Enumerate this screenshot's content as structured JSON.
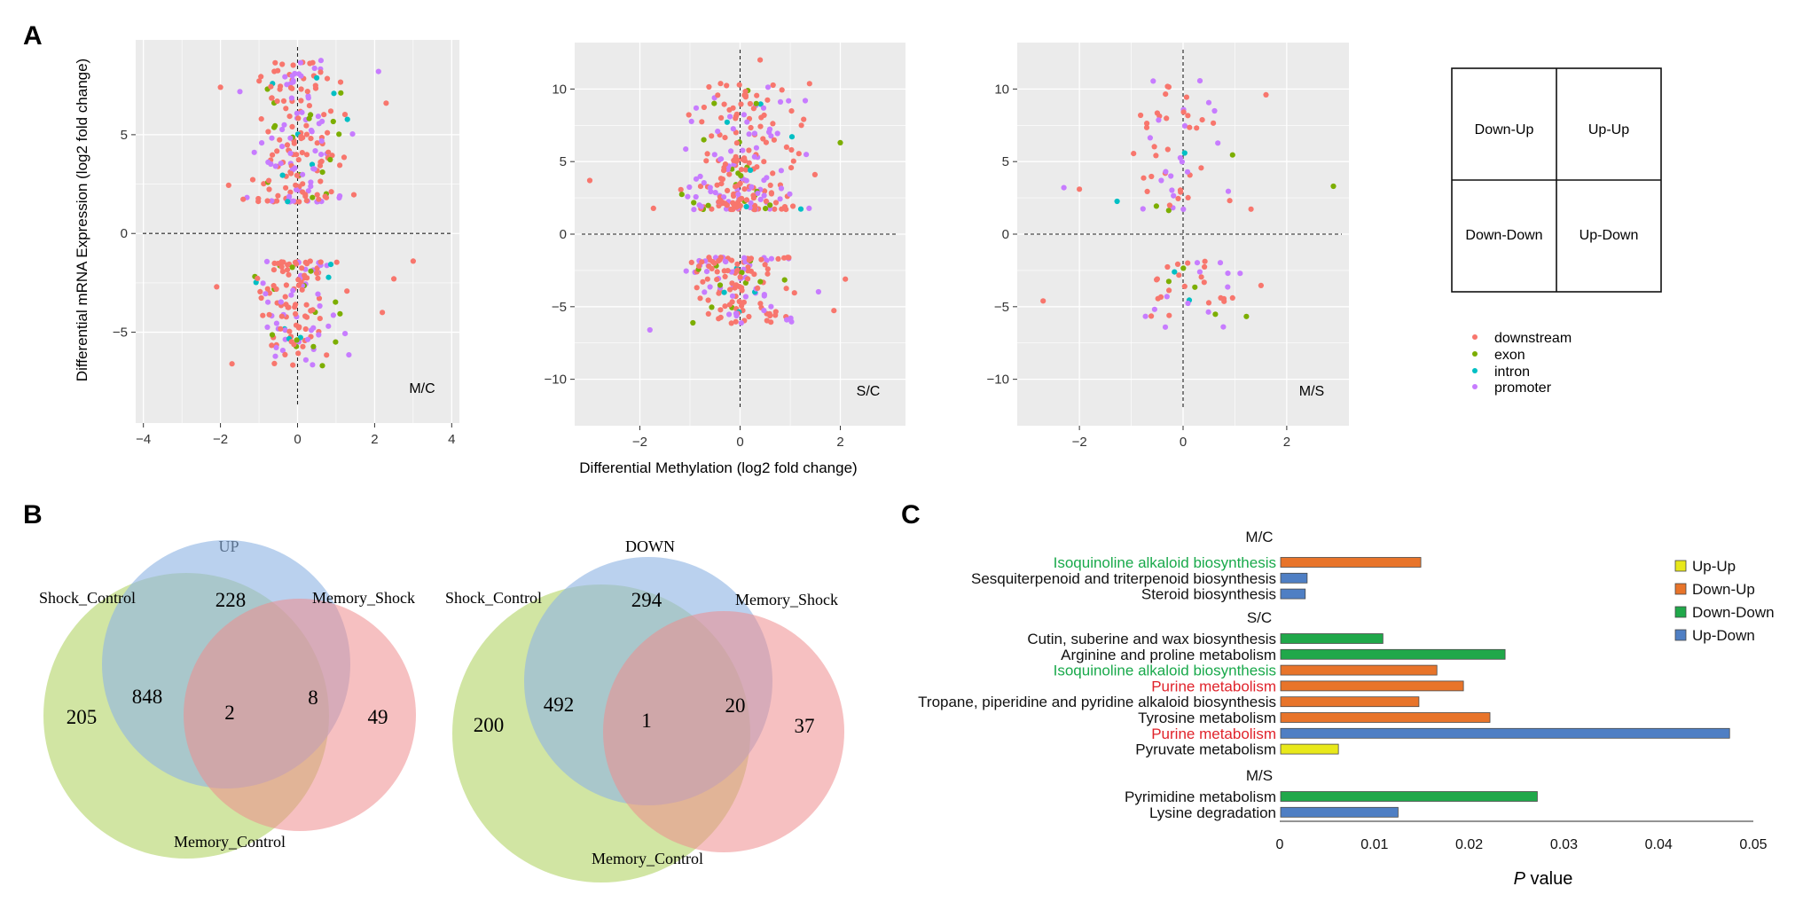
{
  "panel_labels": {
    "a": "A",
    "b": "B",
    "c": "C"
  },
  "colors": {
    "downstream": "#F8766D",
    "exon": "#7CAE00",
    "intron": "#00BFC4",
    "promoter": "#C77CFF",
    "panel_bg": "#EBEBEB",
    "up_up": "#E8E81A",
    "down_up": "#E8742A",
    "down_down": "#20A84A",
    "up_down": "#4F7FC4",
    "venn_green": "#B5D56A",
    "venn_blue": "#8FB4E3",
    "venn_red": "#EE8C8E",
    "pathway_green": "#19A94B",
    "pathway_red": "#E0232B"
  },
  "chart_data": [
    {
      "type": "scatter",
      "panel": "A",
      "name": "M/C",
      "label": "M/C",
      "xlim": [
        -4.2,
        4.2
      ],
      "ylim": [
        -9.6,
        9.8
      ],
      "xticks": [
        -4,
        -2,
        0,
        2,
        4
      ],
      "yticks": [
        -5,
        0,
        5
      ],
      "grid": true,
      "ylabel": "Differential mRNA Expression (log2 fold change)",
      "category_counts": {
        "downstream": 200,
        "exon": 32,
        "intron": 14,
        "promoter": 110
      },
      "cluster": {
        "x_mean": 0,
        "x_sd": 0.55,
        "y_range_up": [
          1.6,
          8.8
        ],
        "y_range_down": [
          -6.7,
          -1.4
        ]
      },
      "outliers": [
        {
          "x": 3.0,
          "y": -1.4,
          "category": "downstream"
        },
        {
          "x": 2.2,
          "y": -4.0,
          "category": "downstream"
        },
        {
          "x": 2.3,
          "y": 6.6,
          "category": "downstream"
        },
        {
          "x": 2.1,
          "y": 8.2,
          "category": "promoter"
        },
        {
          "x": -2.0,
          "y": 7.4,
          "category": "downstream"
        },
        {
          "x": -1.7,
          "y": -6.6,
          "category": "downstream"
        },
        {
          "x": 2.5,
          "y": -2.3,
          "category": "downstream"
        },
        {
          "x": -2.1,
          "y": -2.7,
          "category": "downstream"
        }
      ]
    },
    {
      "type": "scatter",
      "panel": "A",
      "name": "S/C",
      "label": "S/C",
      "xlim": [
        -3.3,
        3.3
      ],
      "ylim": [
        -13.2,
        13.2
      ],
      "xticks": [
        -2,
        0,
        2
      ],
      "yticks": [
        -10,
        -5,
        0,
        5,
        10
      ],
      "grid": true,
      "xlabel": "Differential Methylation (log2 fold change)",
      "category_counts": {
        "downstream": 230,
        "exon": 30,
        "intron": 10,
        "promoter": 120
      },
      "cluster": {
        "x_mean": 0,
        "x_sd": 0.55,
        "y_range_up": [
          1.7,
          10.5
        ],
        "y_range_down": [
          -6.2,
          -1.6
        ]
      },
      "outliers": [
        {
          "x": -3.0,
          "y": 3.7,
          "category": "downstream"
        },
        {
          "x": 0.4,
          "y": 12.0,
          "category": "downstream"
        },
        {
          "x": -1.8,
          "y": -6.6,
          "category": "promoter"
        },
        {
          "x": 2.0,
          "y": 6.3,
          "category": "exon"
        },
        {
          "x": 2.1,
          "y": -3.1,
          "category": "downstream"
        },
        {
          "x": 1.3,
          "y": 9.2,
          "category": "promoter"
        }
      ]
    },
    {
      "type": "scatter",
      "panel": "A",
      "name": "M/S",
      "label": "M/S",
      "xlim": [
        -3.2,
        3.2
      ],
      "ylim": [
        -13.2,
        13.2
      ],
      "xticks": [
        -2,
        0,
        2
      ],
      "yticks": [
        -10,
        -5,
        0,
        5,
        10
      ],
      "grid": true,
      "category_counts": {
        "downstream": 55,
        "exon": 8,
        "intron": 4,
        "promoter": 33
      },
      "cluster": {
        "x_mean": 0,
        "x_sd": 0.55,
        "y_range_up": [
          1.6,
          11.0
        ],
        "y_range_down": [
          -6.7,
          -1.8
        ]
      },
      "outliers": [
        {
          "x": 2.9,
          "y": 3.3,
          "category": "exon"
        },
        {
          "x": 1.6,
          "y": 9.6,
          "category": "downstream"
        },
        {
          "x": -2.7,
          "y": -4.6,
          "category": "downstream"
        },
        {
          "x": -2.3,
          "y": 3.2,
          "category": "promoter"
        },
        {
          "x": -2.0,
          "y": 3.1,
          "category": "downstream"
        },
        {
          "x": 1.1,
          "y": -2.7,
          "category": "promoter"
        }
      ]
    },
    {
      "type": "venn",
      "panel": "B",
      "title": "UP",
      "sets": [
        "Shock_Control",
        "Memory_Shock",
        "Memory_Control"
      ],
      "regions": {
        "shock_only": 205,
        "top_only": 228,
        "memory_shock_only": 49,
        "shock_top": 848,
        "center": 2,
        "top_memory": 8
      }
    },
    {
      "type": "venn",
      "panel": "B",
      "title": "DOWN",
      "sets": [
        "Shock_Control",
        "Memory_Shock",
        "Memory_Control"
      ],
      "regions": {
        "shock_only": 200,
        "top_only": 294,
        "memory_shock_only": 37,
        "shock_top": 492,
        "center": 1,
        "top_memory": 20
      }
    },
    {
      "type": "bar",
      "panel": "C",
      "orientation": "horizontal",
      "xlabel_italic": "P",
      "xlabel_rest": " value",
      "xlim": [
        0,
        0.05
      ],
      "xticks": [
        0,
        0.01,
        0.02,
        0.03,
        0.04,
        0.05
      ],
      "legend": [
        {
          "key": "up_up",
          "label": "Up-Up"
        },
        {
          "key": "down_up",
          "label": "Down-Up"
        },
        {
          "key": "down_down",
          "label": "Down-Down"
        },
        {
          "key": "up_down",
          "label": "Up-Down"
        }
      ],
      "groups": [
        {
          "name": "M/C",
          "items": [
            {
              "label": "Isoquinoline alkaloid biosynthesis",
              "value": 0.0148,
              "type": "down_up",
              "color": "green"
            },
            {
              "label": "Sesquiterpenoid and triterpenoid biosynthesis",
              "value": 0.0028,
              "type": "up_down",
              "color": "black"
            },
            {
              "label": "Steroid biosynthesis",
              "value": 0.0026,
              "type": "up_down",
              "color": "black"
            }
          ]
        },
        {
          "name": "S/C",
          "items": [
            {
              "label": "Cutin, suberine and wax biosynthesis",
              "value": 0.0108,
              "type": "down_down",
              "color": "black"
            },
            {
              "label": "Arginine and proline metabolism",
              "value": 0.0237,
              "type": "down_down",
              "color": "black"
            },
            {
              "label": "Isoquinoline alkaloid biosynthesis",
              "value": 0.0165,
              "type": "down_up",
              "color": "green"
            },
            {
              "label": "Purine metabolism",
              "value": 0.0193,
              "type": "down_up",
              "color": "red"
            },
            {
              "label": "Tropane, piperidine and pyridine alkaloid biosynthesis",
              "value": 0.0146,
              "type": "down_up",
              "color": "black"
            },
            {
              "label": "Tyrosine metabolism",
              "value": 0.0221,
              "type": "down_up",
              "color": "black"
            },
            {
              "label": "Purine metabolism",
              "value": 0.0474,
              "type": "up_down",
              "color": "red"
            },
            {
              "label": "Pyruvate metabolism",
              "value": 0.0061,
              "type": "up_up",
              "color": "black"
            }
          ]
        },
        {
          "name": "M/S",
          "items": [
            {
              "label": "Pyrimidine metabolism",
              "value": 0.0271,
              "type": "down_down",
              "color": "black"
            },
            {
              "label": "Lysine degradation",
              "value": 0.0124,
              "type": "up_down",
              "color": "black"
            }
          ]
        }
      ]
    }
  ],
  "quadrant_key": {
    "top_left": "Down-Up",
    "top_right": "Up-Up",
    "bottom_left": "Down-Down",
    "bottom_right": "Up-Down"
  },
  "scatter_legend": [
    {
      "key": "downstream",
      "label": "downstream"
    },
    {
      "key": "exon",
      "label": "exon"
    },
    {
      "key": "intron",
      "label": "intron"
    },
    {
      "key": "promoter",
      "label": "promoter"
    }
  ]
}
